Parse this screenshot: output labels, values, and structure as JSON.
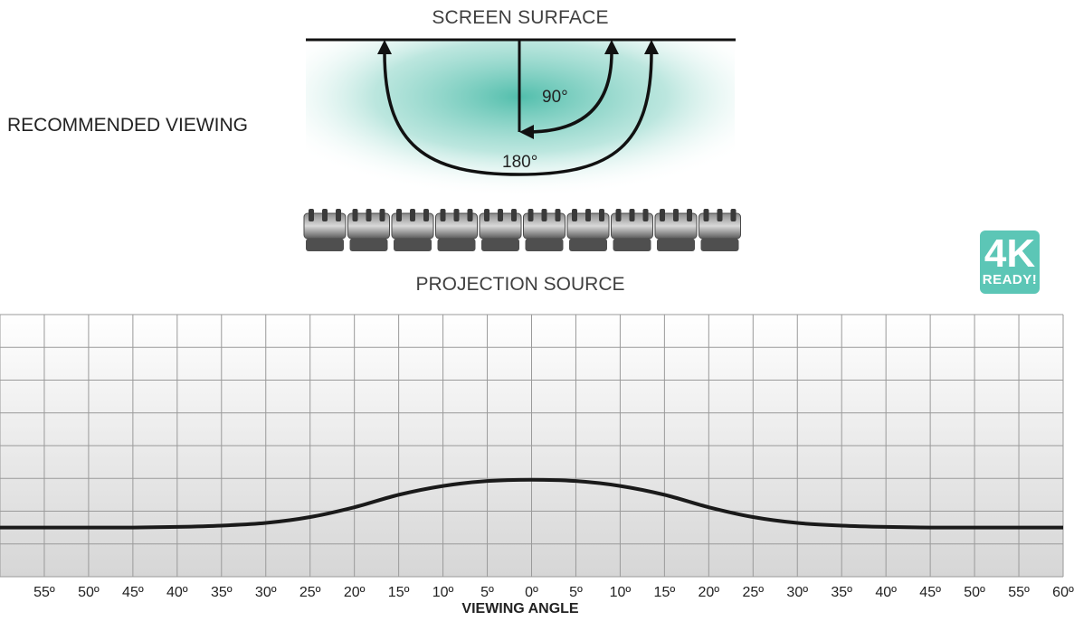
{
  "diagram": {
    "screen_label": "SCREEN SURFACE",
    "recommended_label": "RECOMMENDED VIEWING",
    "angle_inner": "90°",
    "angle_outer": "180°",
    "projection_label": "PROJECTION SOURCE",
    "badge": {
      "line1": "4K",
      "line2": "READY!",
      "color": "#5cc6b6"
    }
  },
  "chart_data": {
    "type": "line",
    "xlabel": "VIEWING ANGLE",
    "tick_labels": [
      "55º",
      "50º",
      "45º",
      "40º",
      "35º",
      "30º",
      "25º",
      "20º",
      "15º",
      "10º",
      "5º",
      "0º",
      "5º",
      "10º",
      "15º",
      "20º",
      "25º",
      "30º",
      "35º",
      "40º",
      "45º",
      "50º",
      "55º",
      "60º"
    ],
    "x": [
      -60,
      -55,
      -50,
      -45,
      -40,
      -35,
      -30,
      -25,
      -20,
      -15,
      -10,
      -5,
      0,
      5,
      10,
      15,
      20,
      25,
      30,
      35,
      40,
      45,
      50,
      55,
      60
    ],
    "y": [
      0,
      0,
      0,
      0,
      0.02,
      0.06,
      0.14,
      0.32,
      0.62,
      1.0,
      1.27,
      1.42,
      1.46,
      1.42,
      1.27,
      1.0,
      0.62,
      0.32,
      0.14,
      0.06,
      0.02,
      0,
      0,
      0,
      0
    ],
    "xlim": [
      -60,
      60
    ],
    "ylim": [
      -1.5,
      6.5
    ],
    "grid": true,
    "line_color": "#1a1a1a"
  }
}
